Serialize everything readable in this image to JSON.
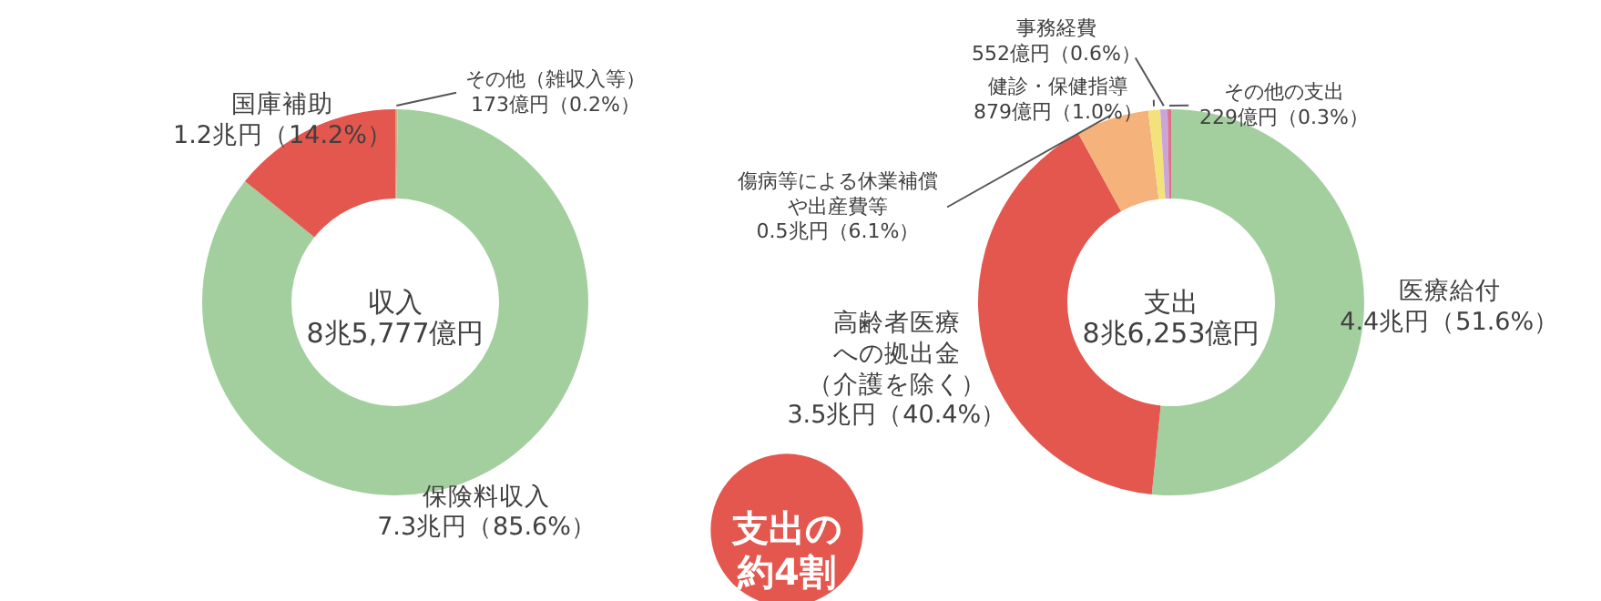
{
  "chart_data": [
    {
      "type": "donut",
      "title": "収入",
      "subtitle": "8兆5,777億円",
      "categories": [
        "その他（雑収入等）",
        "保険料収入",
        "国庫補助"
      ],
      "values": [
        0.2,
        85.6,
        14.2
      ],
      "value_labels": [
        "173億円（0.2%）",
        "7.3兆円（85.6%）",
        "1.2兆円（14.2%）"
      ],
      "colors": [
        "#d9a38a",
        "#a3cf9f",
        "#e4574f"
      ],
      "legend": false
    },
    {
      "type": "donut",
      "title": "支出",
      "subtitle": "8兆6,253億円",
      "categories": [
        "医療給付",
        "高齢者医療への拠出金（介護を除く）",
        "傷病等による休業補償や出産費等",
        "健診・保健指導",
        "事務経費",
        "その他の支出"
      ],
      "values": [
        51.6,
        40.4,
        6.1,
        1.0,
        0.6,
        0.3
      ],
      "value_labels": [
        "4.4兆円（51.6%）",
        "3.5兆円（40.4%）",
        "0.5兆円（6.1%）",
        "879億円（1.0%）",
        "552億円（0.6%）",
        "229億円（0.3%）"
      ],
      "colors": [
        "#a3cf9f",
        "#e4574f",
        "#f5b27a",
        "#f3e27c",
        "#c9a6d6",
        "#e0708a"
      ],
      "annotations": [
        "支出の約4割"
      ],
      "legend": false
    }
  ]
}
